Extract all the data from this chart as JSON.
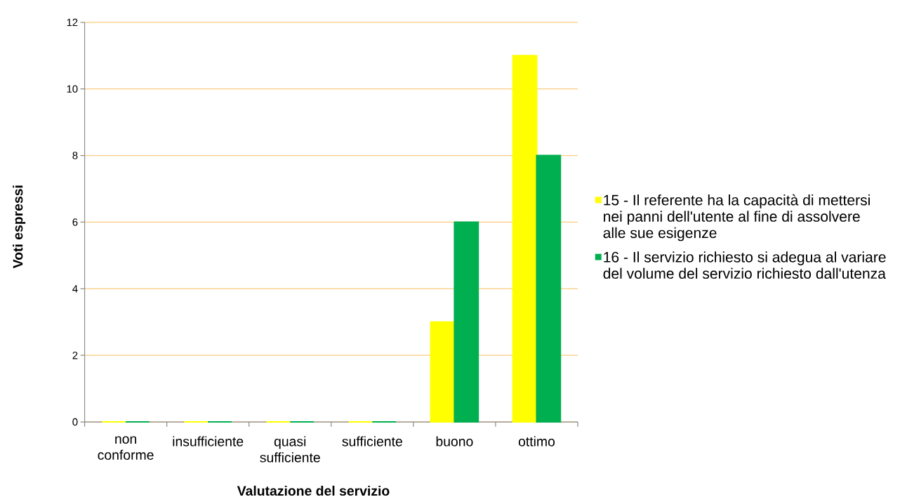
{
  "chart_data": {
    "type": "bar",
    "xlabel": "Valutazione del servizio",
    "ylabel": "Voti espressi",
    "categories": [
      "non conforme",
      "insufficiente",
      "quasi sufficiente",
      "sufficiente",
      "buono",
      "ottimo"
    ],
    "series": [
      {
        "name": "15 - Il referente ha la capacità di mettersi nei panni dell'utente al fine di assolvere alle sue esigenze",
        "color": "#ffff00",
        "values": [
          0,
          0,
          0,
          0,
          3,
          11
        ]
      },
      {
        "name": "16 - Il servizio richiesto si adegua al variare del volume del servizio richiesto dall'utenza",
        "color": "#00b050",
        "values": [
          0,
          0,
          0,
          0,
          6,
          8
        ]
      }
    ],
    "ylim": [
      0,
      12
    ],
    "yticks": [
      0,
      2,
      4,
      6,
      8,
      10,
      12
    ],
    "grid": "y",
    "legend": "right"
  }
}
